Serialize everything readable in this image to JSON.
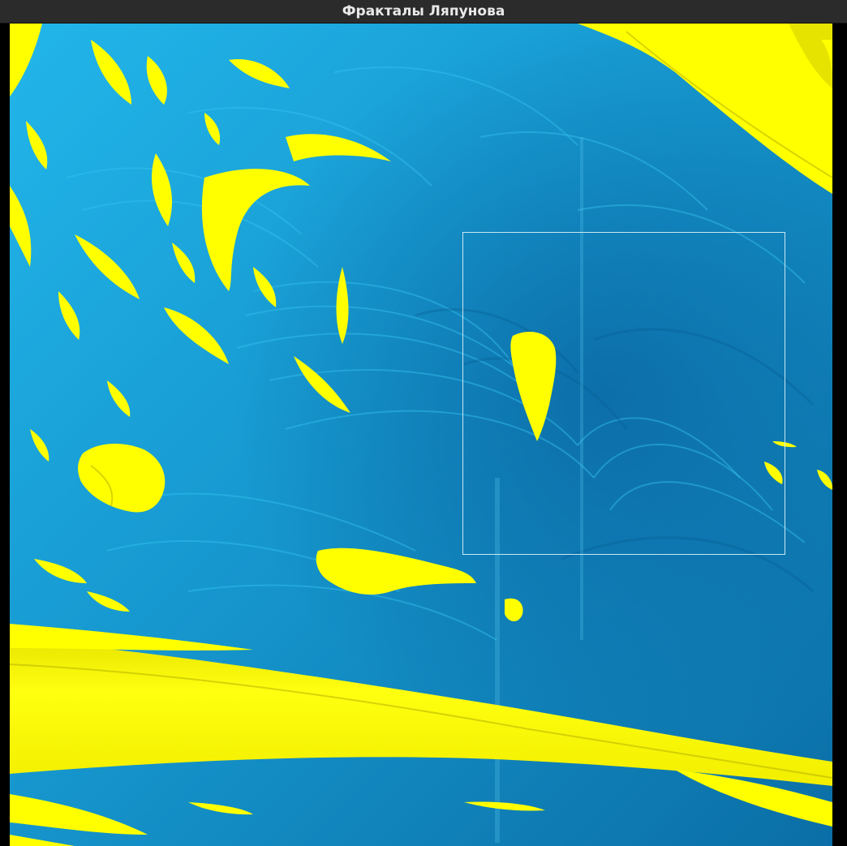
{
  "window": {
    "title": "Фракталы Ляпунова"
  },
  "fractal": {
    "colors": {
      "chaos_light": "#22b6ea",
      "chaos_mid": "#1698cf",
      "chaos_dark": "#0b6ea6",
      "stable": "#ffff00",
      "stable_shadow": "#c9c400",
      "selection_border": "#c8e8f4"
    },
    "selection_visible": true
  }
}
